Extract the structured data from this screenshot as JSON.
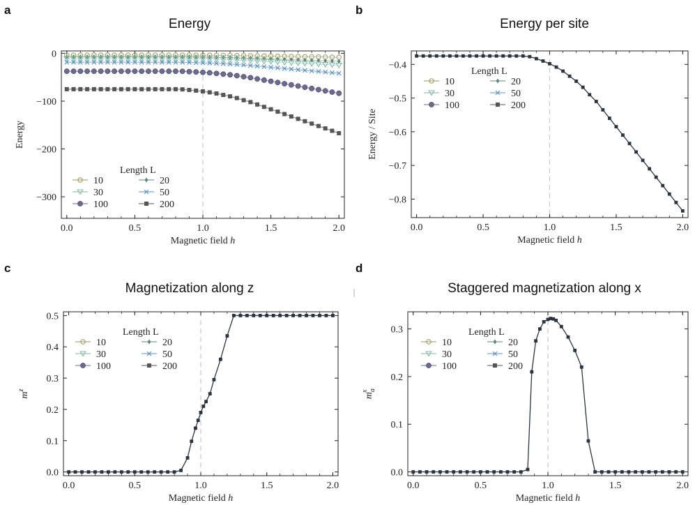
{
  "colors": {
    "L10": "#9a9a55",
    "L20": "#5a8a76",
    "L30": "#7fb9a8",
    "L50": "#5a95c8",
    "L100": "#6a6a98",
    "L200": "#555555",
    "dark_line": "#2b3340",
    "critical_line": "#c8c8c8"
  },
  "panels": [
    {
      "letter": "a",
      "title": "Energy"
    },
    {
      "letter": "b",
      "title": "Energy per site"
    },
    {
      "letter": "c",
      "title": "Magnetization along z"
    },
    {
      "letter": "d",
      "title": "Staggered magnetization along x"
    }
  ],
  "legend": {
    "title": "Length L",
    "entries": [
      {
        "label": "10",
        "series": "L10",
        "marker": "circle-open"
      },
      {
        "label": "20",
        "series": "L20",
        "marker": "diamond"
      },
      {
        "label": "30",
        "series": "L30",
        "marker": "triangle-down"
      },
      {
        "label": "50",
        "series": "L50",
        "marker": "x"
      },
      {
        "label": "100",
        "series": "L100",
        "marker": "circle"
      },
      {
        "label": "200",
        "series": "L200",
        "marker": "square"
      }
    ]
  },
  "chart_data": [
    {
      "type": "line",
      "panel": "a",
      "title": "Energy",
      "xlabel": "Magnetic field",
      "xlabel_var": "h",
      "ylabel": "Energy",
      "xlim": [
        -0.04,
        2.04
      ],
      "ylim": [
        -345,
        5
      ],
      "xticks": [
        0.0,
        0.5,
        1.0,
        1.5,
        2.0
      ],
      "xtick_labels": [
        "0.0",
        "0.5",
        "1.0",
        "1.5",
        "2.0"
      ],
      "yticks": [
        0,
        -100,
        -200,
        -300
      ],
      "ytick_labels": [
        "0",
        "−100",
        "−200",
        "−300"
      ],
      "critical_h": 1.0,
      "legend_position": "lower-left",
      "series": [
        {
          "name": "10",
          "key": "L10",
          "L": 10
        },
        {
          "name": "20",
          "key": "L20",
          "L": 20
        },
        {
          "name": "30",
          "key": "L30",
          "L": 30
        },
        {
          "name": "50",
          "key": "L50",
          "L": 50
        },
        {
          "name": "100",
          "key": "L100",
          "L": 100
        },
        {
          "name": "200",
          "key": "L200",
          "L": 200
        }
      ],
      "energy_per_site_reference": "same as panel b"
    },
    {
      "type": "line",
      "panel": "b",
      "title": "Energy per site",
      "xlabel": "Magnetic field",
      "xlabel_var": "h",
      "ylabel": "Energy / Site",
      "xlim": [
        -0.04,
        2.04
      ],
      "ylim": [
        -0.855,
        -0.36
      ],
      "xticks": [
        0.0,
        0.5,
        1.0,
        1.5,
        2.0
      ],
      "xtick_labels": [
        "0.0",
        "0.5",
        "1.0",
        "1.5",
        "2.0"
      ],
      "yticks": [
        -0.4,
        -0.5,
        -0.6,
        -0.7,
        -0.8
      ],
      "ytick_labels": [
        "−0.4",
        "−0.5",
        "−0.6",
        "−0.7",
        "−0.8"
      ],
      "critical_h": 1.0,
      "legend_position": "upper-left",
      "x": [
        0.0,
        0.05,
        0.1,
        0.15,
        0.2,
        0.25,
        0.3,
        0.35,
        0.4,
        0.45,
        0.5,
        0.55,
        0.6,
        0.65,
        0.7,
        0.75,
        0.8,
        0.85,
        0.9,
        0.95,
        1.0,
        1.05,
        1.1,
        1.15,
        1.2,
        1.25,
        1.3,
        1.35,
        1.4,
        1.45,
        1.5,
        1.55,
        1.6,
        1.65,
        1.7,
        1.75,
        1.8,
        1.85,
        1.9,
        1.95,
        2.0
      ],
      "values": [
        -0.375,
        -0.375,
        -0.375,
        -0.375,
        -0.375,
        -0.375,
        -0.375,
        -0.375,
        -0.375,
        -0.375,
        -0.375,
        -0.375,
        -0.375,
        -0.375,
        -0.375,
        -0.375,
        -0.375,
        -0.377,
        -0.383,
        -0.39,
        -0.398,
        -0.408,
        -0.42,
        -0.435,
        -0.45,
        -0.468,
        -0.49,
        -0.51,
        -0.535,
        -0.56,
        -0.585,
        -0.61,
        -0.635,
        -0.66,
        -0.685,
        -0.71,
        -0.735,
        -0.76,
        -0.785,
        -0.81,
        -0.835
      ]
    },
    {
      "type": "line",
      "panel": "c",
      "title": "Magnetization along z",
      "xlabel": "Magnetic field",
      "xlabel_var": "h",
      "ylabel": "m",
      "ylabel_sup": "z",
      "xlim": [
        -0.04,
        2.04
      ],
      "ylim": [
        -0.012,
        0.512
      ],
      "xticks": [
        0.0,
        0.5,
        1.0,
        1.5,
        2.0
      ],
      "xtick_labels": [
        "0.0",
        "0.5",
        "1.0",
        "1.5",
        "2.0"
      ],
      "yticks": [
        0.0,
        0.1,
        0.2,
        0.3,
        0.4,
        0.5
      ],
      "ytick_labels": [
        "0.0",
        "0.1",
        "0.2",
        "0.3",
        "0.4",
        "0.5"
      ],
      "critical_h": 1.0,
      "legend_position": "upper-left",
      "x": [
        0.0,
        0.05,
        0.1,
        0.15,
        0.2,
        0.25,
        0.3,
        0.35,
        0.4,
        0.45,
        0.5,
        0.55,
        0.6,
        0.65,
        0.7,
        0.75,
        0.8,
        0.85,
        0.9,
        0.93,
        0.96,
        0.98,
        1.0,
        1.02,
        1.04,
        1.07,
        1.1,
        1.15,
        1.2,
        1.25,
        1.3,
        1.35,
        1.4,
        1.45,
        1.5,
        1.55,
        1.6,
        1.65,
        1.7,
        1.75,
        1.8,
        1.85,
        1.9,
        1.95,
        2.0
      ],
      "values": [
        0.0,
        0.0,
        0.0,
        0.0,
        0.0,
        0.0,
        0.0,
        0.0,
        0.0,
        0.0,
        0.0,
        0.0,
        0.0,
        0.0,
        0.0,
        0.0,
        0.0,
        0.005,
        0.045,
        0.098,
        0.14,
        0.165,
        0.19,
        0.21,
        0.225,
        0.25,
        0.295,
        0.36,
        0.435,
        0.5,
        0.5,
        0.5,
        0.5,
        0.5,
        0.5,
        0.5,
        0.5,
        0.5,
        0.5,
        0.5,
        0.5,
        0.5,
        0.5,
        0.5,
        0.5
      ]
    },
    {
      "type": "line",
      "panel": "d",
      "title": "Staggered magnetization along x",
      "xlabel": "Magnetic field",
      "xlabel_var": "h",
      "ylabel": "m",
      "ylabel_sup": "x",
      "ylabel_sub": "a",
      "xlim": [
        -0.04,
        2.04
      ],
      "ylim": [
        -0.008,
        0.336
      ],
      "xticks": [
        0.0,
        0.5,
        1.0,
        1.5,
        2.0
      ],
      "xtick_labels": [
        "0.0",
        "0.5",
        "1.0",
        "1.5",
        "2.0"
      ],
      "yticks": [
        0.0,
        0.1,
        0.2,
        0.3
      ],
      "ytick_labels": [
        "0.0",
        "0.1",
        "0.2",
        "0.3"
      ],
      "critical_h": 1.0,
      "legend_position": "upper-left",
      "x": [
        0.0,
        0.05,
        0.1,
        0.15,
        0.2,
        0.25,
        0.3,
        0.35,
        0.4,
        0.45,
        0.5,
        0.55,
        0.6,
        0.65,
        0.7,
        0.75,
        0.8,
        0.85,
        0.88,
        0.91,
        0.94,
        0.97,
        1.0,
        1.02,
        1.04,
        1.06,
        1.1,
        1.15,
        1.2,
        1.25,
        1.3,
        1.35,
        1.4,
        1.45,
        1.5,
        1.55,
        1.6,
        1.65,
        1.7,
        1.75,
        1.8,
        1.85,
        1.9,
        1.95,
        2.0
      ],
      "values": [
        0.0,
        0.0,
        0.0,
        0.0,
        0.0,
        0.0,
        0.0,
        0.0,
        0.0,
        0.0,
        0.0,
        0.0,
        0.0,
        0.0,
        0.0,
        0.0,
        0.0,
        0.005,
        0.21,
        0.275,
        0.3,
        0.315,
        0.32,
        0.322,
        0.321,
        0.318,
        0.305,
        0.283,
        0.255,
        0.22,
        0.065,
        0.0,
        0.0,
        0.0,
        0.0,
        0.0,
        0.0,
        0.0,
        0.0,
        0.0,
        0.0,
        0.0,
        0.0,
        0.0,
        0.0
      ]
    }
  ]
}
